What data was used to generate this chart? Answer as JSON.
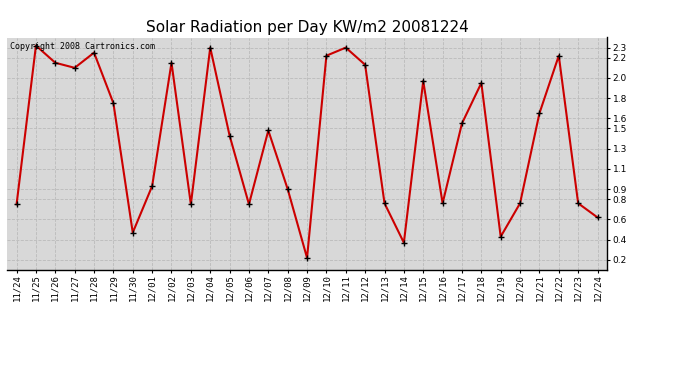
{
  "title": "Solar Radiation per Day KW/m2 20081224",
  "copyright_text": "Copyright 2008 Cartronics.com",
  "labels": [
    "11/24",
    "11/25",
    "11/26",
    "11/27",
    "11/28",
    "11/29",
    "11/30",
    "12/01",
    "12/02",
    "12/03",
    "12/04",
    "12/05",
    "12/06",
    "12/07",
    "12/08",
    "12/09",
    "12/10",
    "12/11",
    "12/12",
    "12/13",
    "12/14",
    "12/15",
    "12/16",
    "12/17",
    "12/18",
    "12/19",
    "12/20",
    "12/21",
    "12/22",
    "12/23",
    "12/24"
  ],
  "values": [
    0.75,
    2.32,
    2.15,
    2.1,
    2.25,
    1.75,
    0.47,
    0.93,
    2.15,
    0.75,
    2.3,
    1.43,
    0.75,
    1.48,
    0.9,
    0.22,
    2.22,
    2.3,
    2.13,
    0.76,
    0.37,
    1.97,
    0.76,
    1.55,
    1.95,
    0.43,
    0.76,
    1.65,
    2.22,
    0.76,
    0.62
  ],
  "line_color": "#cc0000",
  "marker_color": "#000000",
  "background_color": "#ffffff",
  "plot_bg_color": "#d8d8d8",
  "grid_color": "#bbbbbb",
  "ylim": [
    0.1,
    2.4
  ],
  "yticks": [
    0.2,
    0.4,
    0.6,
    0.8,
    0.9,
    1.1,
    1.3,
    1.5,
    1.6,
    1.8,
    2.0,
    2.2,
    2.3
  ],
  "title_fontsize": 11,
  "tick_fontsize": 6.5,
  "copyright_fontsize": 6
}
